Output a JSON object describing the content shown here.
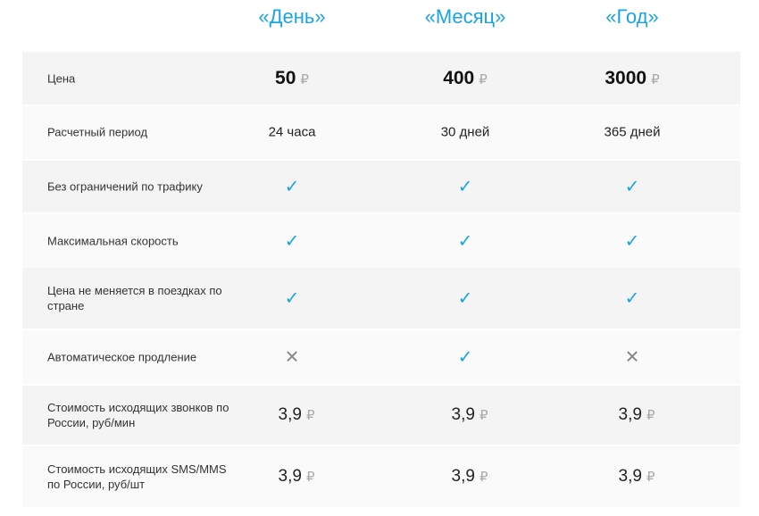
{
  "plans": [
    "«День»",
    "«Месяц»",
    "«Год»"
  ],
  "accent_color": "#1aa5e0",
  "rows": [
    {
      "label": "Цена",
      "type": "price",
      "values": [
        "50",
        "400",
        "3000"
      ],
      "currency": "₽"
    },
    {
      "label": "Расчетный период",
      "type": "text",
      "values": [
        "24 часа",
        "30 дней",
        "365 дней"
      ]
    },
    {
      "label": "Без ограничений по трафику",
      "type": "bool",
      "values": [
        true,
        true,
        true
      ]
    },
    {
      "label": "Максимальная скорость",
      "type": "bool",
      "values": [
        true,
        true,
        true
      ]
    },
    {
      "label": "Цена не меняется в поездках по стране",
      "type": "bool",
      "values": [
        true,
        true,
        true
      ]
    },
    {
      "label": "Автоматическое продление",
      "type": "bool",
      "values": [
        false,
        true,
        false
      ]
    },
    {
      "label": "Стоимость исходящих звонков по России, руб/мин",
      "type": "rate",
      "values": [
        "3,9",
        "3,9",
        "3,9"
      ],
      "currency": "₽"
    },
    {
      "label": "Стоимость исходящих SMS/MMS по России, руб/шт",
      "type": "rate",
      "values": [
        "3,9",
        "3,9",
        "3,9"
      ],
      "currency": "₽"
    }
  ],
  "icons": {
    "yes": "check-icon",
    "no": "cross-icon"
  }
}
